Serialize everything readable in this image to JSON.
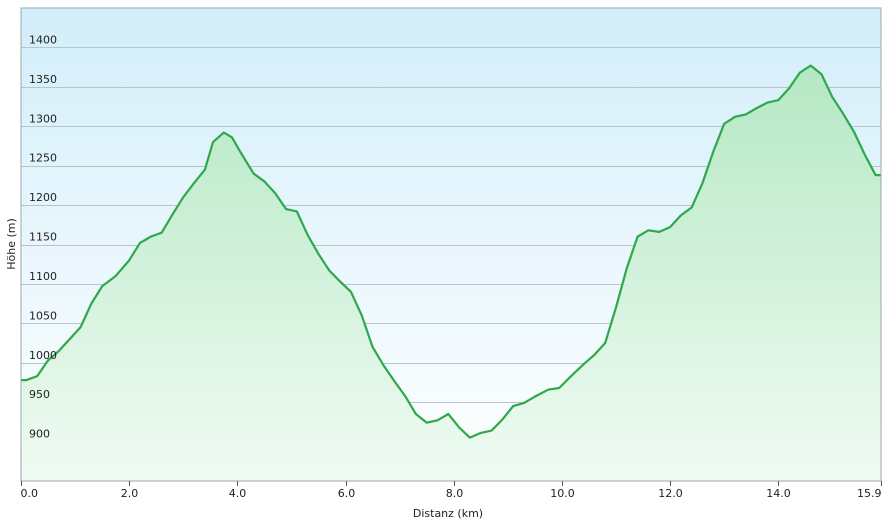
{
  "chart_data": {
    "type": "area",
    "title": "",
    "xlabel": "Distanz  (km)",
    "ylabel": "Höhe (m)",
    "xlim": [
      0,
      15.9
    ],
    "ylim": [
      850,
      1450
    ],
    "x_ticks": [
      0,
      2,
      4,
      6,
      8,
      10,
      12,
      14,
      15.9
    ],
    "x_tick_labels": [
      "0.0",
      "2.0",
      "4.0",
      "6.0",
      "8.0",
      "10.0",
      "12.0",
      "14.0",
      "15.9"
    ],
    "y_ticks": [
      900,
      950,
      1000,
      1050,
      1100,
      1150,
      1200,
      1250,
      1300,
      1350,
      1400
    ],
    "y_tick_labels": [
      "900",
      "950",
      "1000",
      "1050",
      "1100",
      "1150",
      "1200",
      "1250",
      "1300",
      "1350",
      "1400"
    ],
    "grid": true,
    "legend": "none",
    "colors": {
      "line": "#2ea84a",
      "fill_top": "#b5e8c4",
      "fill_bottom": "#f0fbf3",
      "bg_top": "#d2eefa",
      "bg_bottom": "#ffffff"
    },
    "series": [
      {
        "x": [
          0,
          0.1,
          0.3,
          0.5,
          0.7,
          0.9,
          1.1,
          1.3,
          1.5,
          1.75,
          2.0,
          2.2,
          2.4,
          2.6,
          2.8,
          3.0,
          3.2,
          3.4,
          3.55,
          3.75,
          3.9,
          4.05,
          4.3,
          4.5,
          4.7,
          4.9,
          5.1,
          5.3,
          5.5,
          5.7,
          5.9,
          6.1,
          6.3,
          6.5,
          6.7,
          6.9,
          7.1,
          7.3,
          7.5,
          7.7,
          7.9,
          8.1,
          8.3,
          8.5,
          8.7,
          8.9,
          9.1,
          9.3,
          9.5,
          9.75,
          9.95,
          10.2,
          10.4,
          10.6,
          10.8,
          11.0,
          11.2,
          11.4,
          11.6,
          11.8,
          12.0,
          12.2,
          12.4,
          12.6,
          12.8,
          13.0,
          13.2,
          13.4,
          13.6,
          13.8,
          14.0,
          14.2,
          14.4,
          14.6,
          14.8,
          15.0,
          15.2,
          15.4,
          15.6,
          15.8,
          15.9
        ],
        "y": [
          978,
          978,
          983,
          1003,
          1015,
          1030,
          1045,
          1075,
          1097,
          1110,
          1130,
          1152,
          1160,
          1165,
          1188,
          1210,
          1228,
          1245,
          1280,
          1292,
          1286,
          1268,
          1240,
          1230,
          1215,
          1195,
          1192,
          1162,
          1138,
          1117,
          1103,
          1090,
          1060,
          1020,
          997,
          977,
          958,
          935,
          924,
          927,
          935,
          918,
          905,
          911,
          914,
          928,
          945,
          949,
          957,
          966,
          968,
          985,
          998,
          1010,
          1025,
          1070,
          1120,
          1160,
          1168,
          1166,
          1172,
          1187,
          1197,
          1228,
          1268,
          1303,
          1312,
          1315,
          1323,
          1330,
          1333,
          1348,
          1368,
          1377,
          1366,
          1337,
          1316,
          1293,
          1264,
          1238,
          1238
        ]
      }
    ]
  }
}
